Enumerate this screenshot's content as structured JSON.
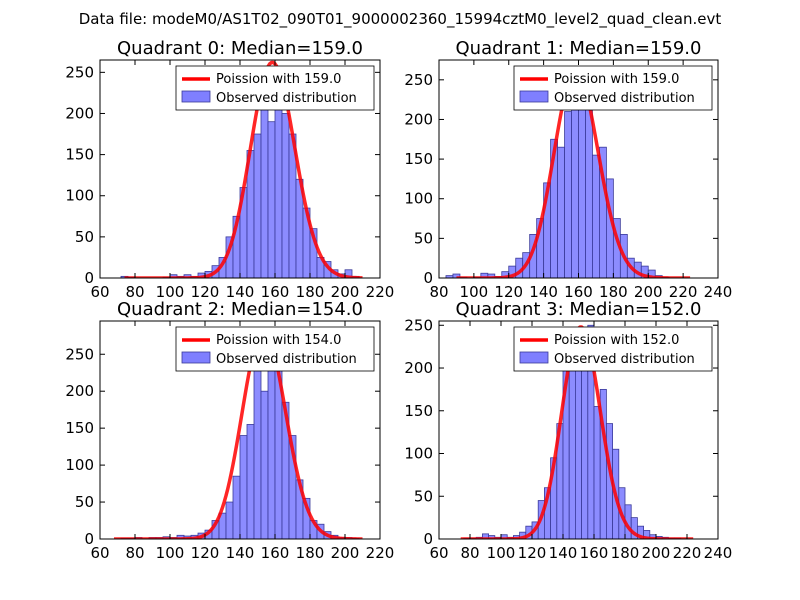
{
  "figure": {
    "suptitle": "Data file: modeM0/AS1T02_090T01_9000002360_15994cztM0_level2_quad_clean.evt"
  },
  "colors": {
    "hist_fill": "#7f7fff",
    "hist_edge": "#3a3a9a",
    "poisson": "#ff0000",
    "axes": "#000000",
    "legend_border": "#000000"
  },
  "chart_data": [
    {
      "type": "bar",
      "title": "Quadrant 0: Median=159.0",
      "xlim": [
        60,
        220
      ],
      "ylim": [
        0,
        265
      ],
      "xticks": [
        60,
        80,
        100,
        120,
        140,
        160,
        180,
        200,
        220
      ],
      "yticks": [
        0,
        50,
        100,
        150,
        200,
        250
      ],
      "legend": {
        "location": "upper right",
        "line_label": "Poission with 159.0",
        "hist_label": "Observed distribution"
      },
      "bin_width": 4,
      "bin_starts": [
        72,
        76,
        80,
        84,
        88,
        92,
        96,
        100,
        104,
        108,
        112,
        116,
        120,
        124,
        128,
        132,
        136,
        140,
        144,
        148,
        152,
        156,
        160,
        164,
        168,
        172,
        176,
        180,
        184,
        188,
        192,
        196,
        200,
        204
      ],
      "counts": [
        2,
        1,
        0,
        0,
        0,
        0,
        1,
        4,
        2,
        4,
        2,
        6,
        8,
        15,
        25,
        50,
        75,
        110,
        155,
        175,
        220,
        190,
        240,
        200,
        175,
        120,
        85,
        60,
        25,
        20,
        10,
        5,
        10,
        2
      ],
      "poisson_mean": 159.0,
      "poisson_peak": 262,
      "poisson_range": [
        74,
        210
      ]
    },
    {
      "type": "bar",
      "title": "Quadrant 1: Median=159.0",
      "xlim": [
        80,
        240
      ],
      "ylim": [
        0,
        275
      ],
      "xticks": [
        80,
        100,
        120,
        140,
        160,
        180,
        200,
        220,
        240
      ],
      "yticks": [
        0,
        50,
        100,
        150,
        200,
        250
      ],
      "legend": {
        "location": "upper right",
        "line_label": "Poission with 159.0",
        "hist_label": "Observed distribution"
      },
      "bin_width": 4,
      "bin_starts": [
        84,
        88,
        92,
        96,
        100,
        104,
        108,
        112,
        116,
        120,
        124,
        128,
        132,
        136,
        140,
        144,
        148,
        152,
        156,
        160,
        164,
        168,
        172,
        176,
        180,
        184,
        188,
        192,
        196,
        200,
        204,
        208
      ],
      "counts": [
        3,
        5,
        1,
        0,
        1,
        6,
        5,
        2,
        8,
        15,
        25,
        32,
        55,
        75,
        120,
        175,
        165,
        210,
        240,
        225,
        265,
        155,
        165,
        125,
        75,
        55,
        25,
        20,
        15,
        10,
        3,
        1
      ],
      "poisson_mean": 159.0,
      "poisson_peak": 262,
      "poisson_range": [
        90,
        224
      ]
    },
    {
      "type": "bar",
      "title": "Quadrant 2: Median=154.0",
      "xlim": [
        60,
        220
      ],
      "ylim": [
        0,
        295
      ],
      "xticks": [
        60,
        80,
        100,
        120,
        140,
        160,
        180,
        200,
        220
      ],
      "yticks": [
        0,
        50,
        100,
        150,
        200,
        250
      ],
      "legend": {
        "location": "upper right",
        "line_label": "Poission with 154.0",
        "hist_label": "Observed distribution"
      },
      "bin_width": 4,
      "bin_starts": [
        72,
        76,
        80,
        84,
        88,
        92,
        96,
        100,
        104,
        108,
        112,
        116,
        120,
        124,
        128,
        132,
        136,
        140,
        144,
        148,
        152,
        156,
        160,
        164,
        168,
        172,
        176,
        180,
        184,
        188,
        192,
        196,
        200,
        204
      ],
      "counts": [
        1,
        1,
        2,
        0,
        2,
        2,
        3,
        2,
        5,
        4,
        5,
        8,
        12,
        25,
        35,
        50,
        85,
        140,
        155,
        235,
        200,
        260,
        245,
        185,
        140,
        80,
        55,
        25,
        20,
        10,
        5,
        2,
        2,
        1
      ],
      "poisson_mean": 154.0,
      "poisson_peak": 283,
      "poisson_range": [
        68,
        210
      ]
    },
    {
      "type": "bar",
      "title": "Quadrant 3: Median=152.0",
      "xlim": [
        60,
        240
      ],
      "ylim": [
        0,
        255
      ],
      "xticks": [
        60,
        80,
        100,
        120,
        140,
        160,
        180,
        200,
        220,
        240
      ],
      "yticks": [
        0,
        50,
        100,
        150,
        200,
        250
      ],
      "legend": {
        "location": "upper right",
        "line_label": "Poission with 152.0",
        "hist_label": "Observed distribution"
      },
      "bin_width": 4,
      "bin_starts": [
        76,
        80,
        84,
        88,
        92,
        96,
        100,
        104,
        108,
        112,
        116,
        120,
        124,
        128,
        132,
        136,
        140,
        144,
        148,
        152,
        156,
        160,
        164,
        168,
        172,
        176,
        180,
        184,
        188,
        192,
        196,
        200,
        204,
        208,
        212
      ],
      "counts": [
        1,
        1,
        2,
        6,
        4,
        2,
        5,
        2,
        4,
        8,
        15,
        20,
        45,
        60,
        95,
        135,
        200,
        230,
        245,
        225,
        250,
        155,
        175,
        135,
        105,
        60,
        40,
        25,
        15,
        10,
        5,
        3,
        2,
        1,
        1
      ],
      "poisson_mean": 152.0,
      "poisson_peak": 248,
      "poisson_range": [
        74,
        224
      ]
    }
  ]
}
